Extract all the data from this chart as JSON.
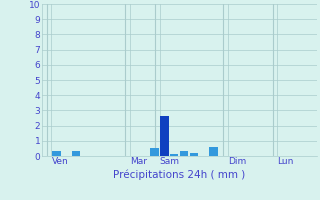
{
  "title": "",
  "xlabel": "Précipitations 24h ( mm )",
  "ylabel": "",
  "background_color": "#d8f2ee",
  "bar_color_dark": "#1040c0",
  "bar_color_light": "#3399dd",
  "grid_color": "#aacccc",
  "axis_color": "#9999bb",
  "label_color": "#4444cc",
  "ylim": [
    0,
    10
  ],
  "yticks": [
    0,
    1,
    2,
    3,
    4,
    5,
    6,
    7,
    8,
    9,
    10
  ],
  "day_labels": [
    "Ven",
    "Mar",
    "Sam",
    "Dim",
    "Lun"
  ],
  "day_tick_positions": [
    0.5,
    8.5,
    11.5,
    18.5,
    23.5
  ],
  "n_bars": 28,
  "bars": [
    0,
    0.3,
    0,
    0.35,
    0,
    0,
    0,
    0,
    0,
    0,
    0,
    0.55,
    2.65,
    0.15,
    0.35,
    0.2,
    0,
    0.6,
    0,
    0,
    0,
    0,
    0,
    0,
    0,
    0,
    0,
    0
  ],
  "bar_styles": [
    0,
    1,
    0,
    1,
    0,
    0,
    0,
    0,
    0,
    0,
    0,
    1,
    0,
    1,
    1,
    1,
    0,
    1,
    0,
    0,
    0,
    0,
    0,
    0,
    0,
    0,
    0,
    0
  ]
}
